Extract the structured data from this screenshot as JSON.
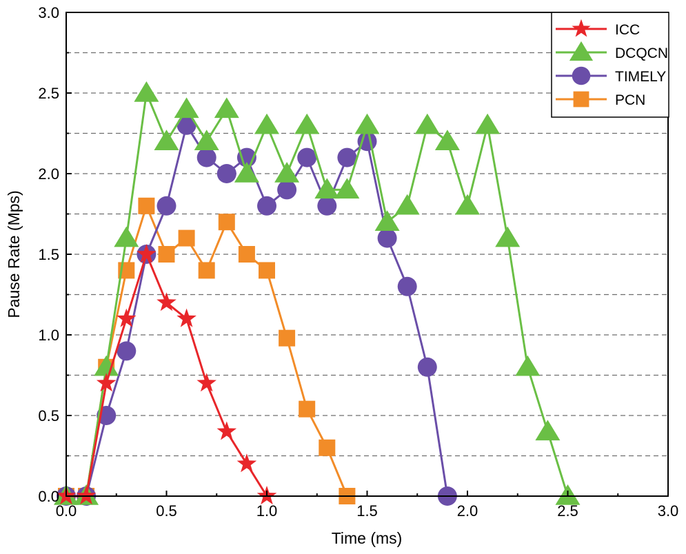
{
  "chart_data": {
    "type": "line",
    "title": "",
    "xlabel": "Time (ms)",
    "ylabel": "Pause Rate (Mps)",
    "xlim": [
      0.0,
      3.0
    ],
    "ylim": [
      0.0,
      3.0
    ],
    "x_ticks": [
      "0.0",
      "0.5",
      "1.0",
      "1.5",
      "2.0",
      "2.5",
      "3.0"
    ],
    "y_ticks": [
      "0.0",
      "0.5",
      "1.0",
      "1.5",
      "2.0",
      "2.5",
      "3.0"
    ],
    "y_gridlines": [
      0.25,
      0.5,
      0.75,
      1.0,
      1.25,
      1.5,
      1.75,
      2.0,
      2.25,
      2.5,
      2.75
    ],
    "grid": "horizontal dashed",
    "legend_position": "top-right",
    "series": [
      {
        "name": "ICC",
        "color": "#e8262a",
        "marker": "star",
        "x": [
          0.0,
          0.1,
          0.2,
          0.3,
          0.4,
          0.5,
          0.6,
          0.7,
          0.8,
          0.9,
          1.0
        ],
        "y": [
          0.0,
          0.0,
          0.7,
          1.1,
          1.5,
          1.2,
          1.1,
          0.7,
          0.4,
          0.2,
          0.0
        ]
      },
      {
        "name": "DCQCN",
        "color": "#6abf45",
        "marker": "triangle",
        "x": [
          0.0,
          0.1,
          0.2,
          0.3,
          0.4,
          0.5,
          0.6,
          0.7,
          0.8,
          0.9,
          1.0,
          1.1,
          1.2,
          1.3,
          1.4,
          1.5,
          1.6,
          1.7,
          1.8,
          1.9,
          2.0,
          2.1,
          2.2,
          2.3,
          2.4,
          2.5
        ],
        "y": [
          0.0,
          0.0,
          0.8,
          1.6,
          2.5,
          2.2,
          2.4,
          2.2,
          2.4,
          2.0,
          2.3,
          2.0,
          2.3,
          1.9,
          1.9,
          2.3,
          1.7,
          1.8,
          2.3,
          2.2,
          1.8,
          2.3,
          1.6,
          0.8,
          0.4,
          0.0
        ]
      },
      {
        "name": "TIMELY",
        "color": "#6a4ea8",
        "marker": "circle",
        "x": [
          0.0,
          0.1,
          0.2,
          0.3,
          0.4,
          0.5,
          0.6,
          0.7,
          0.8,
          0.9,
          1.0,
          1.1,
          1.2,
          1.3,
          1.4,
          1.5,
          1.6,
          1.7,
          1.8,
          1.9
        ],
        "y": [
          0.0,
          0.0,
          0.5,
          0.9,
          1.5,
          1.8,
          2.3,
          2.1,
          2.0,
          2.1,
          1.8,
          1.9,
          2.1,
          1.8,
          2.1,
          2.2,
          1.6,
          1.3,
          0.8,
          0.0
        ]
      },
      {
        "name": "PCN",
        "color": "#f28c28",
        "marker": "square",
        "x": [
          0.0,
          0.1,
          0.2,
          0.3,
          0.4,
          0.5,
          0.6,
          0.7,
          0.8,
          0.9,
          1.0,
          1.1,
          1.2,
          1.3,
          1.4
        ],
        "y": [
          0.0,
          0.0,
          0.8,
          1.4,
          1.8,
          1.5,
          1.6,
          1.4,
          1.7,
          1.5,
          1.4,
          0.98,
          0.54,
          0.3,
          0.0
        ]
      }
    ]
  }
}
